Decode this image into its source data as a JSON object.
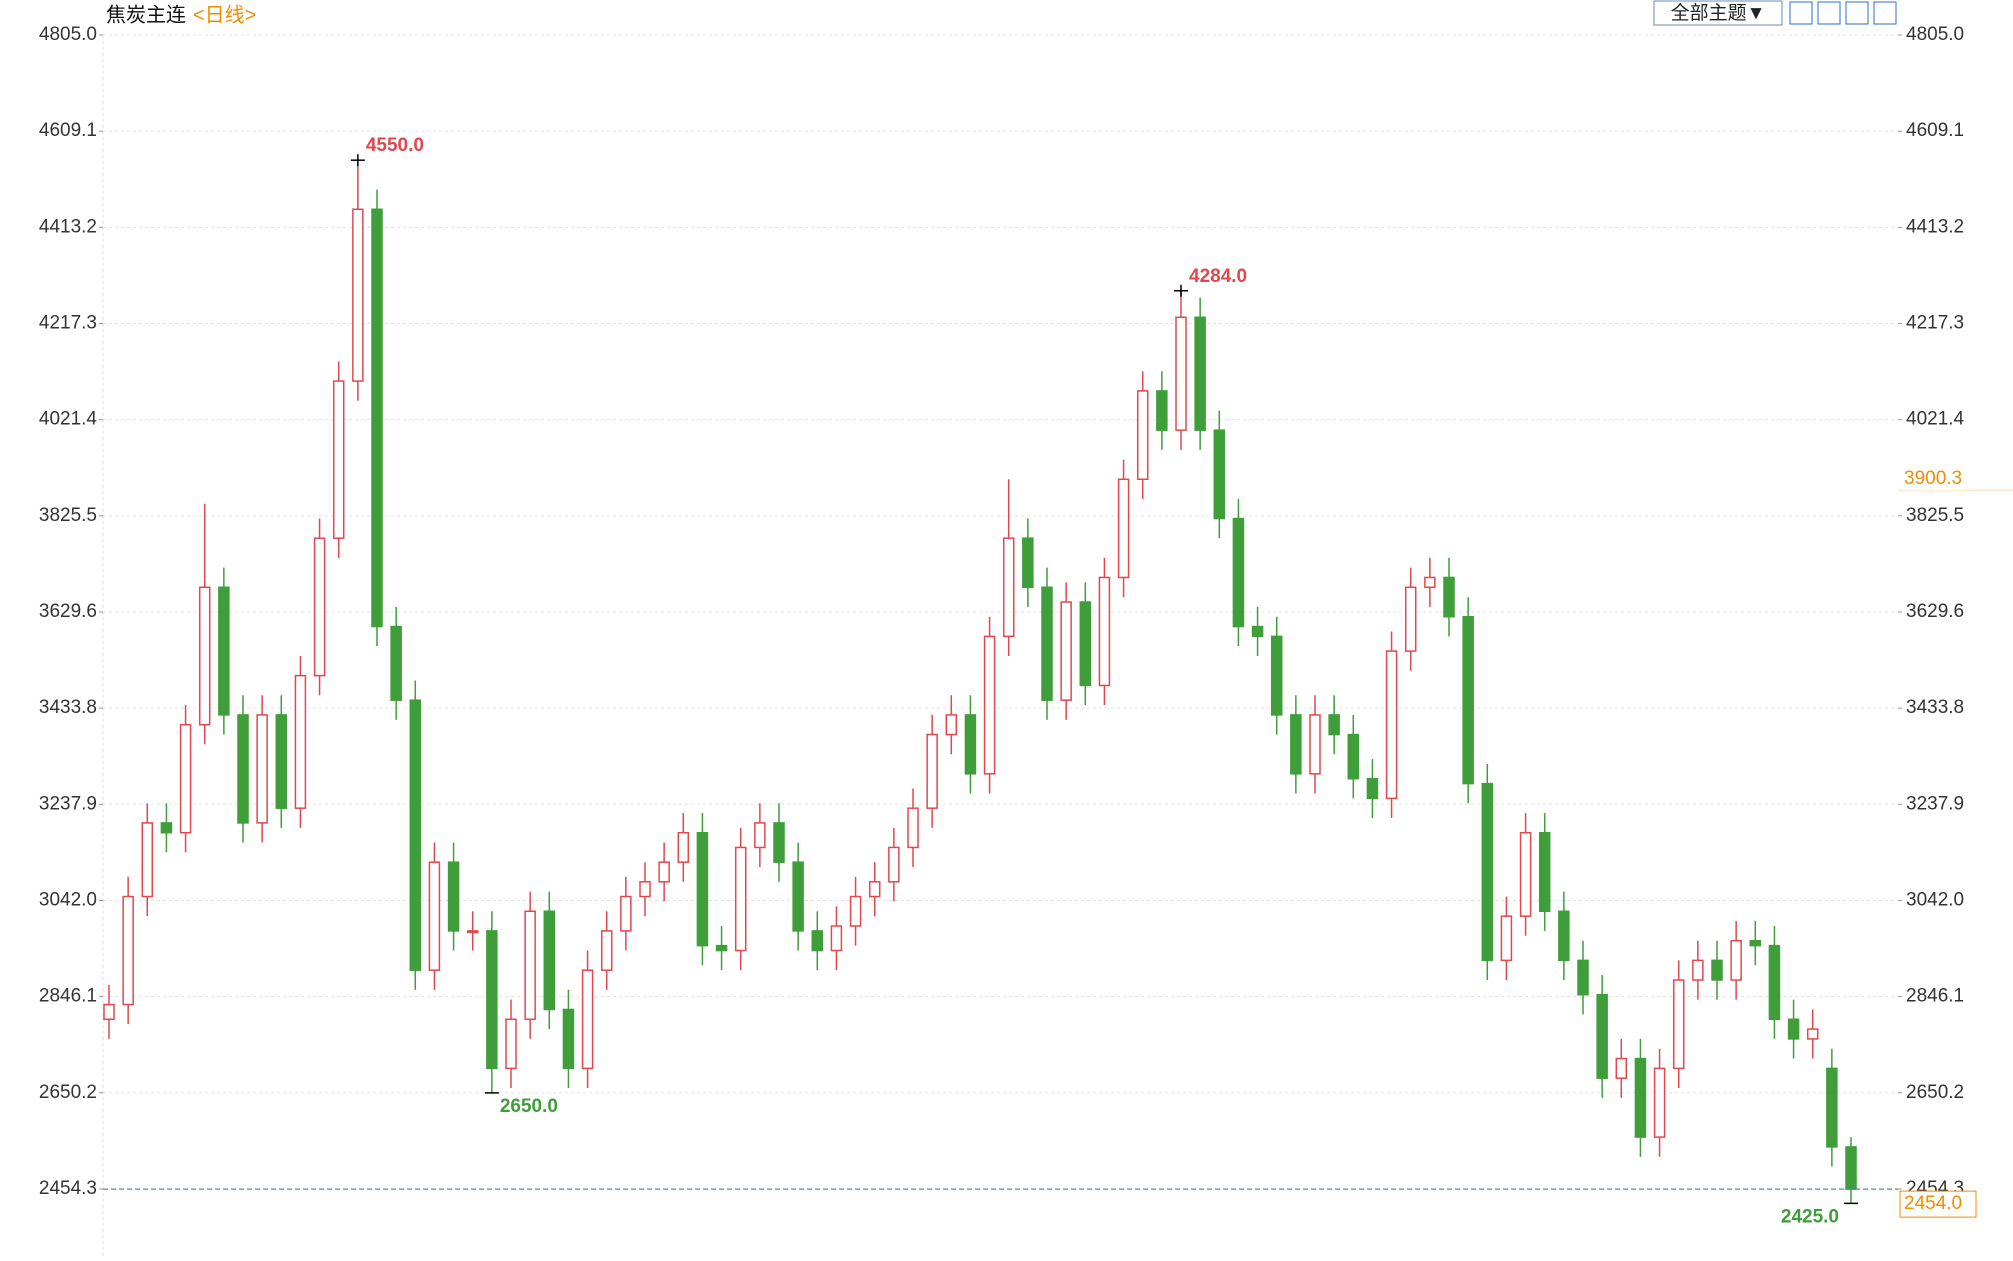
{
  "toolbar": {
    "theme_button": "全部主题▼"
  },
  "chart_data": {
    "type": "candlestick",
    "title": "焦炭主连",
    "subtitle": "<日线>",
    "open": [
      2800,
      2830,
      3050,
      3200,
      3180,
      3400,
      3680,
      3420,
      3200,
      3420,
      3230,
      3500,
      3780,
      4100,
      4450,
      3600,
      3450,
      2900,
      3120,
      2980,
      2980,
      2700,
      2800,
      3020,
      2820,
      2700,
      2900,
      2980,
      3050,
      3080,
      3120,
      3180,
      2950,
      2940,
      3150,
      3200,
      3120,
      2980,
      2940,
      2990,
      3050,
      3080,
      3150,
      3230,
      3380,
      3420,
      3300,
      3580,
      3780,
      3680,
      3450,
      3650,
      3480,
      3700,
      3900,
      4080,
      4000,
      4230,
      4000,
      3820,
      3600,
      3580,
      3420,
      3300,
      3420,
      3380,
      3290,
      3250,
      3550,
      3680,
      3700,
      3620,
      3280,
      2920,
      3010,
      3180,
      3020,
      2920,
      2850,
      2680,
      2720,
      2560,
      2700,
      2880,
      2920,
      2880,
      2960,
      2950,
      2800,
      2760,
      2700,
      2540
    ],
    "high": [
      2870,
      3090,
      3240,
      3240,
      3440,
      3850,
      3720,
      3460,
      3460,
      3460,
      3540,
      3820,
      4140,
      4550,
      4490,
      3640,
      3490,
      3160,
      3160,
      3020,
      3020,
      2840,
      3060,
      3060,
      2860,
      2940,
      3020,
      3090,
      3120,
      3160,
      3220,
      3220,
      2990,
      3190,
      3240,
      3240,
      3160,
      3020,
      3030,
      3090,
      3120,
      3190,
      3270,
      3420,
      3460,
      3460,
      3620,
      3900,
      3820,
      3720,
      3690,
      3690,
      3740,
      3940,
      4120,
      4120,
      4284,
      4270,
      4040,
      3860,
      3640,
      3620,
      3460,
      3460,
      3460,
      3420,
      3330,
      3590,
      3720,
      3740,
      3740,
      3660,
      3320,
      3050,
      3220,
      3220,
      3060,
      2960,
      2890,
      2760,
      2760,
      2740,
      2920,
      2960,
      2960,
      3000,
      3000,
      2990,
      2840,
      2820,
      2740,
      2560
    ],
    "low": [
      2760,
      2790,
      3010,
      3140,
      3140,
      3360,
      3380,
      3160,
      3160,
      3190,
      3190,
      3460,
      3740,
      4060,
      3560,
      3410,
      2860,
      2860,
      2940,
      2940,
      2650,
      2660,
      2760,
      2780,
      2660,
      2660,
      2860,
      2940,
      3010,
      3040,
      3080,
      2910,
      2900,
      2900,
      3110,
      3080,
      2940,
      2900,
      2900,
      2950,
      3010,
      3040,
      3110,
      3190,
      3340,
      3260,
      3260,
      3540,
      3640,
      3410,
      3410,
      3440,
      3440,
      3660,
      3860,
      3960,
      3960,
      3960,
      3780,
      3560,
      3540,
      3380,
      3260,
      3260,
      3340,
      3250,
      3210,
      3210,
      3510,
      3640,
      3580,
      3240,
      2880,
      2880,
      2970,
      2980,
      2880,
      2810,
      2640,
      2640,
      2520,
      2520,
      2660,
      2840,
      2840,
      2840,
      2910,
      2760,
      2720,
      2720,
      2500,
      2425
    ],
    "close": [
      2830,
      3050,
      3200,
      3180,
      3400,
      3680,
      3420,
      3200,
      3420,
      3230,
      3500,
      3780,
      4100,
      4450,
      3600,
      3450,
      2900,
      3120,
      2980,
      2980,
      2700,
      2800,
      3020,
      2820,
      2700,
      2900,
      2980,
      3050,
      3080,
      3120,
      3180,
      2950,
      2940,
      3150,
      3200,
      3120,
      2980,
      2940,
      2990,
      3050,
      3080,
      3150,
      3230,
      3380,
      3420,
      3300,
      3580,
      3780,
      3680,
      3450,
      3650,
      3480,
      3700,
      3900,
      4080,
      4000,
      4230,
      4000,
      3820,
      3600,
      3580,
      3420,
      3300,
      3420,
      3380,
      3290,
      3250,
      3550,
      3680,
      3700,
      3620,
      3280,
      2920,
      3010,
      3180,
      3020,
      2920,
      2850,
      2680,
      2720,
      2560,
      2700,
      2880,
      2920,
      2880,
      2960,
      2950,
      2800,
      2760,
      2780,
      2540,
      2454
    ],
    "up_color": "#e0484e",
    "down_color": "#3f9e3a",
    "ylim": [
      2313.7,
      4805
    ],
    "yticks": [
      {
        "value": 4805,
        "label": "4805.0"
      },
      4609.1,
      4413.2,
      4217.3,
      4021.4,
      3825.5,
      3629.6,
      3433.8,
      3237.9,
      {
        "value": 3042,
        "label": "3042.0"
      },
      2846.1,
      2650.2,
      2454.3
    ],
    "grid": true,
    "annotations": [
      {
        "value": 4550,
        "label": "4550.0"
      },
      {
        "value": 4284,
        "label": "4284.0"
      },
      {
        "value": 2650,
        "label": "2650.0"
      },
      {
        "value": 2425,
        "label": "2425.0"
      }
    ],
    "last_price": {
      "value": 2454,
      "label": "2454.0",
      "color": "#3a8fd0"
    },
    "marker_price": {
      "value": 3900.3,
      "color": "#f08c00"
    }
  }
}
